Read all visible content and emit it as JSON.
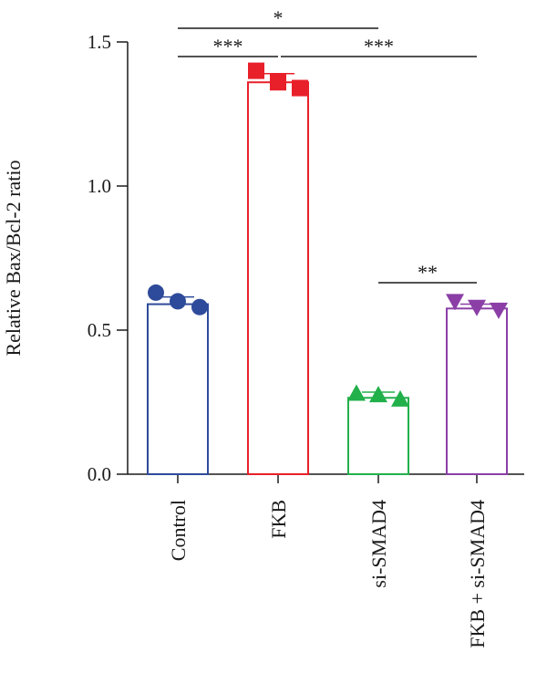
{
  "chart_data": {
    "type": "bar",
    "title": "",
    "xlabel": "",
    "ylabel": "Relative Bax/Bcl-2 ratio",
    "ylim": [
      0,
      1.5
    ],
    "yticks": [
      0.0,
      0.5,
      1.0,
      1.5
    ],
    "ytick_labels": [
      "0.0",
      "0.5",
      "1.0",
      "1.5"
    ],
    "grid": false,
    "legend": "none",
    "categories": [
      "Control",
      "FKB",
      "si-SMAD4",
      "FKB + si-SMAD4"
    ],
    "values": [
      0.59,
      1.36,
      0.265,
      0.575
    ],
    "sd": [
      0.025,
      0.03,
      0.02,
      0.015
    ],
    "colors": [
      "#2e4a9a",
      "#e8202a",
      "#22b04b",
      "#8b3fa6"
    ],
    "markers": [
      "circle",
      "square",
      "triangle-up",
      "triangle-down"
    ],
    "points": [
      [
        0.63,
        0.6,
        0.58
      ],
      [
        1.4,
        1.36,
        1.34
      ],
      [
        0.28,
        0.275,
        0.26
      ],
      [
        0.6,
        0.58,
        0.57
      ]
    ],
    "significance": [
      {
        "from": 0,
        "to": 2,
        "label": "*"
      },
      {
        "from": 0,
        "to": 1,
        "label": "***"
      },
      {
        "from": 1,
        "to": 3,
        "label": "***"
      },
      {
        "from": 2,
        "to": 3,
        "label": "**"
      }
    ]
  }
}
